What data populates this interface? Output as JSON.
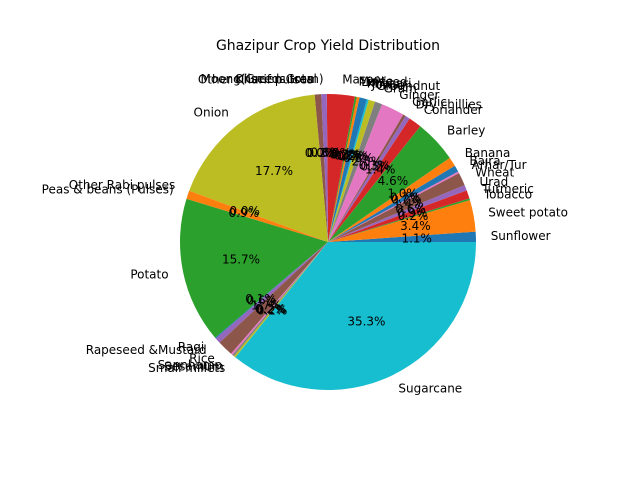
{
  "chart_data": {
    "type": "pie",
    "title": "Ghazipur Crop Yield Distribution",
    "start_angle_deg": 0,
    "direction": "counterclockwise",
    "legend": "none",
    "slices": [
      {
        "label": "Sunflower",
        "value": 1.1,
        "pct_label": "1.1%",
        "color": "#1f77b4"
      },
      {
        "label": "Sweet potato",
        "value": 3.4,
        "pct_label": "3.4%",
        "color": "#ff7f0e"
      },
      {
        "label": "Tobacco",
        "value": 0.2,
        "pct_label": "0.2%",
        "color": "#2ca02c"
      },
      {
        "label": "Turmeric",
        "value": 0.9,
        "pct_label": "0.9%",
        "color": "#d62728"
      },
      {
        "label": "Urad",
        "value": 0.6,
        "pct_label": "0.6%",
        "color": "#9467bd"
      },
      {
        "label": "Wheat",
        "value": 1.4,
        "pct_label": "1.4%",
        "color": "#8c564b"
      },
      {
        "label": "Arhar/Tur",
        "value": 0.2,
        "pct_label": "0.2%",
        "color": "#e377c2"
      },
      {
        "label": "Bajra",
        "value": 0.7,
        "pct_label": "0.7%",
        "color": "#1f77b4"
      },
      {
        "label": "Banana",
        "value": 1.0,
        "pct_label": "1.0%",
        "color": "#ff7f0e"
      },
      {
        "label": "Barley",
        "value": 4.6,
        "pct_label": "4.6%",
        "color": "#2ca02c"
      },
      {
        "label": "Coriander",
        "value": 1.4,
        "pct_label": "1.4%",
        "color": "#d62728"
      },
      {
        "label": "Dry chillies",
        "value": 0.5,
        "pct_label": "0.5%",
        "color": "#9467bd"
      },
      {
        "label": "Garlic",
        "value": 0.3,
        "pct_label": "0.3%",
        "color": "#8c564b"
      },
      {
        "label": "Ginger",
        "value": 2.5,
        "pct_label": "2.5%",
        "color": "#e377c2"
      },
      {
        "label": "Gram",
        "value": 0.8,
        "pct_label": "0.8%",
        "color": "#7f7f7f"
      },
      {
        "label": "Groundnut",
        "value": 0.7,
        "pct_label": "0.7%",
        "color": "#bcbd22"
      },
      {
        "label": "Jowar",
        "value": 0.2,
        "pct_label": "0.2%",
        "color": "#17becf"
      },
      {
        "label": "Khesari",
        "value": 0.8,
        "pct_label": "0.8%",
        "color": "#1f77b4"
      },
      {
        "label": "Linseed",
        "value": 0.3,
        "pct_label": "0.3%",
        "color": "#ff7f0e"
      },
      {
        "label": "Maize",
        "value": 0.2,
        "pct_label": "0.2%",
        "color": "#2ca02c"
      },
      {
        "label": "Masoor",
        "value": 3.0,
        "pct_label": "3.0%",
        "color": "#d62728"
      },
      {
        "label": "Moong(Green Gram)",
        "value": 0.6,
        "pct_label": "0.6%",
        "color": "#9467bd"
      },
      {
        "label": "Oilseeds total",
        "value": 0.7,
        "pct_label": "0.7%",
        "color": "#8c564b"
      },
      {
        "label": "Other Kharif pulses",
        "value": 0.0,
        "pct_label": "0.0%",
        "color": "#e377c2"
      },
      {
        "label": "Onion",
        "value": 17.7,
        "pct_label": "17.7%",
        "color": "#bcbd22"
      },
      {
        "label": "Other Rabi pulses",
        "value": 0.0,
        "pct_label": "0.0%",
        "color": "#17becf"
      },
      {
        "label": "Peas & beans (Pulses)",
        "value": 0.9,
        "pct_label": "0.9%",
        "color": "#ff7f0e"
      },
      {
        "label": "Potato",
        "value": 15.7,
        "pct_label": "15.7%",
        "color": "#2ca02c"
      },
      {
        "label": "Ragi",
        "value": 0.1,
        "pct_label": "0.1%",
        "color": "#1f77b4"
      },
      {
        "label": "Rapeseed &Mustard",
        "value": 0.6,
        "pct_label": "0.6%",
        "color": "#9467bd"
      },
      {
        "label": "Rice",
        "value": 1.7,
        "pct_label": "1.7%",
        "color": "#8c564b"
      },
      {
        "label": "Sannhamp",
        "value": 0.2,
        "pct_label": "0.2%",
        "color": "#e377c2"
      },
      {
        "label": "Sesamum",
        "value": 0.2,
        "pct_label": "0.2%",
        "color": "#7f7f7f"
      },
      {
        "label": "Small millets",
        "value": 0.2,
        "pct_label": "0.2%",
        "color": "#bcbd22"
      },
      {
        "label": "Sugarcane",
        "value": 35.3,
        "pct_label": "35.3%",
        "color": "#17becf"
      }
    ]
  }
}
